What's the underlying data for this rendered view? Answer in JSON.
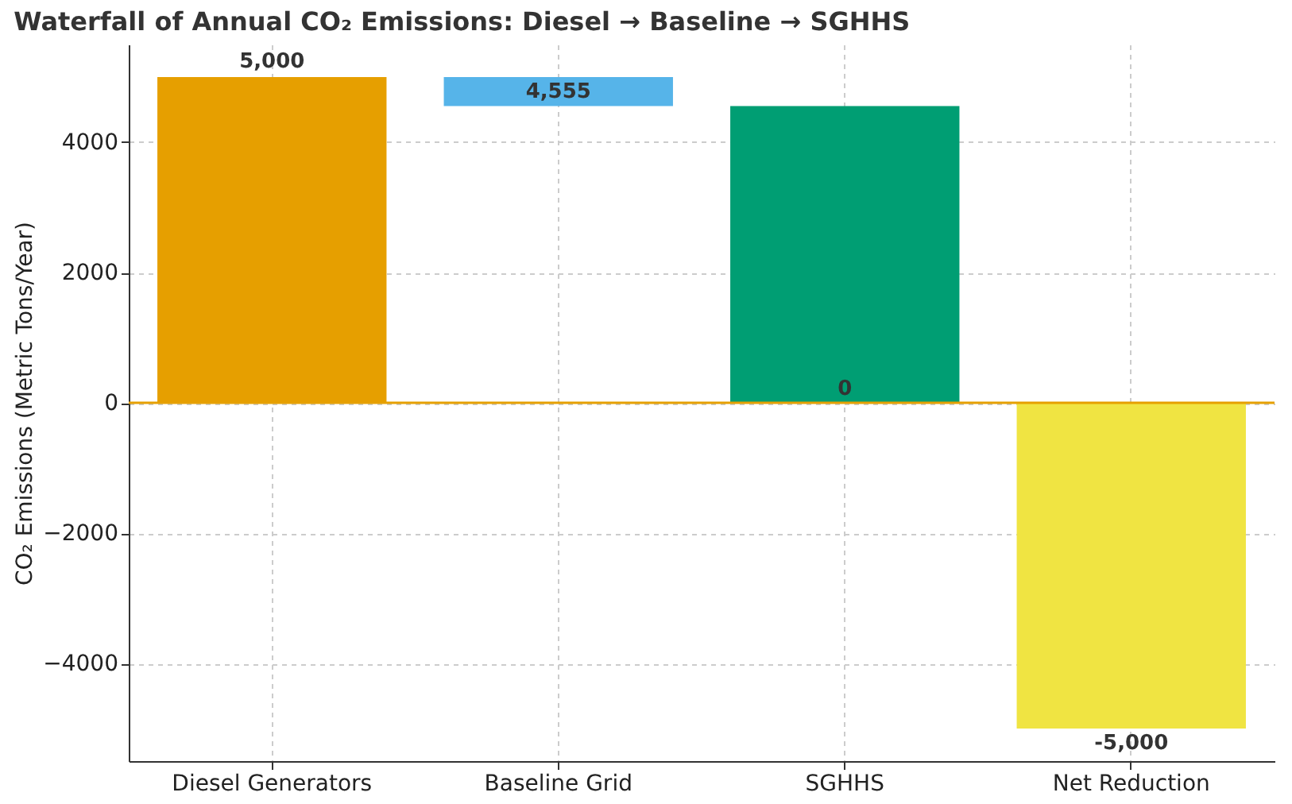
{
  "chart_data": {
    "type": "bar",
    "title": "Waterfall of Annual CO₂ Emissions: Diesel → Baseline → SGHHS",
    "ylabel": "CO₂ Emissions (Metric Tons/Year)",
    "categories": [
      "Diesel Generators",
      "Baseline Grid",
      "SGHHS",
      "Net Reduction"
    ],
    "values": [
      5000,
      445,
      4555,
      -5000
    ],
    "base": [
      0,
      4555,
      0,
      0
    ],
    "value_labels": [
      "5,000",
      null,
      null,
      "-5,000"
    ],
    "annotations": [
      {
        "text": "4,555",
        "x": "Baseline Grid",
        "y": 4555
      },
      {
        "text": "0",
        "x": "SGHHS",
        "y": 0
      }
    ],
    "colors": [
      "#e69f00",
      "#56b4e9",
      "#009e73",
      "#f0e442"
    ],
    "ylim": [
      -5500,
      5500
    ],
    "yticks": [
      -4000,
      -2000,
      0,
      2000,
      4000
    ],
    "ref_lines": [
      {
        "axis": "y",
        "value": 0,
        "color": "#e6a000"
      }
    ],
    "grid": true
  }
}
